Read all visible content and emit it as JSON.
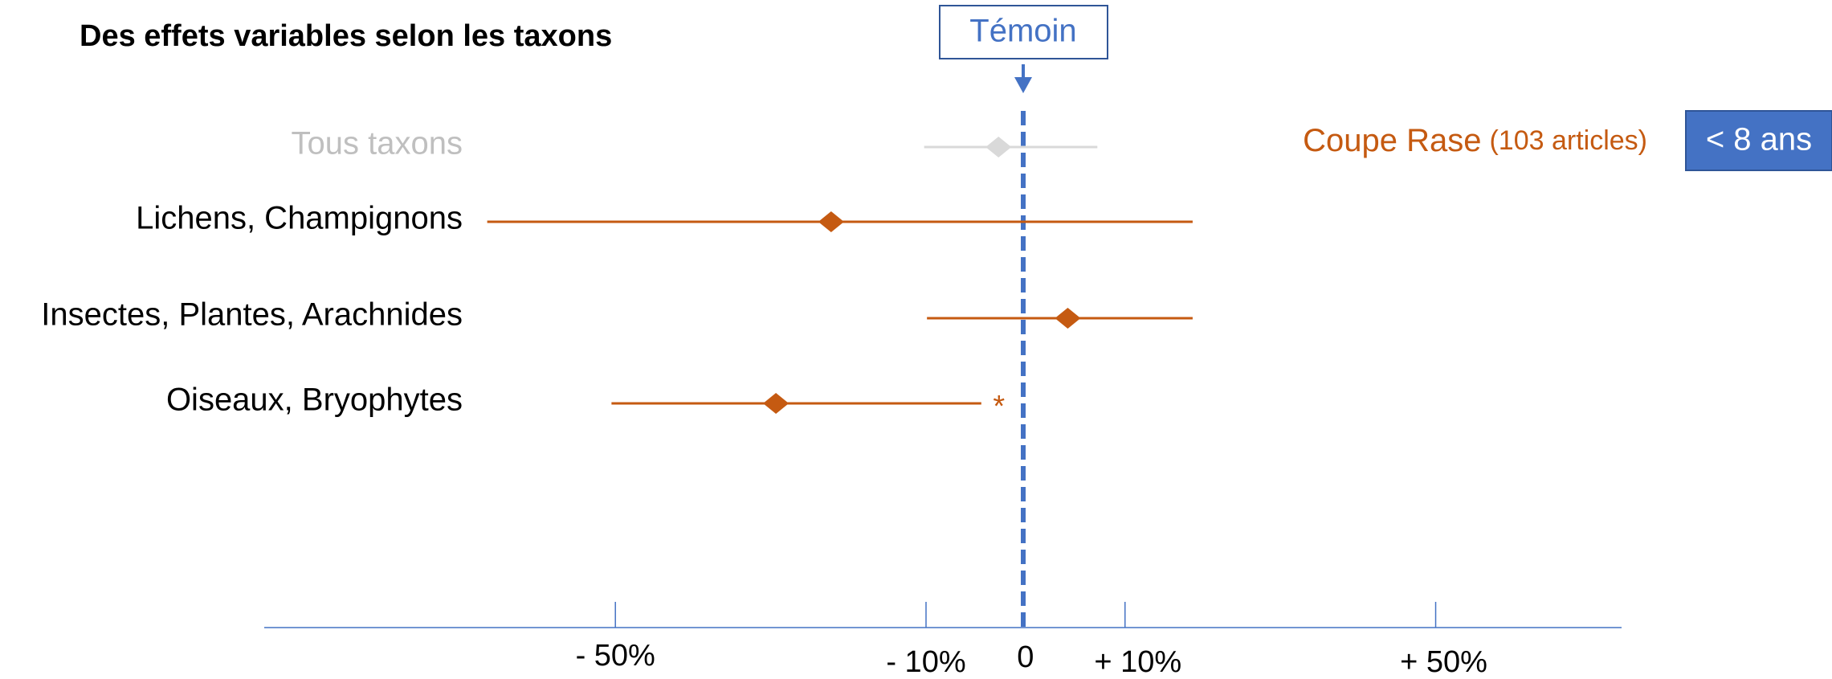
{
  "chart_data": {
    "type": "forest",
    "title": "Des effets variables selon les taxons",
    "reference": "Témoin",
    "group": "Coupe Rase",
    "group_note": "(103 articles)",
    "period": "< 8 ans",
    "xscale": "symlog",
    "xlim": [
      -117,
      82
    ],
    "xticks": [
      {
        "value": -50,
        "label": "- 50%"
      },
      {
        "value": -10,
        "label": "- 10%"
      },
      0,
      {
        "value": 10,
        "label": "+ 10%"
      },
      {
        "value": 50,
        "label": "+ 50%"
      }
    ],
    "rows": [
      {
        "label": "Tous taxons",
        "value": -2.6,
        "low": -10.2,
        "high": 7.1,
        "color": "#d9d9d9",
        "text_color": "#bfbfbf"
      },
      {
        "label": "Lichens, Champignons",
        "value": -20.7,
        "low": -71.3,
        "high": 17.5,
        "color": "#c55a11",
        "text_color": "#000000"
      },
      {
        "label": "Insectes, Plantes, Arachnides",
        "value": 4.1,
        "low": -9.9,
        "high": 17.5,
        "color": "#c55a11",
        "text_color": "#000000"
      },
      {
        "label": "Oiseaux, Bryophytes",
        "value": -27.5,
        "low": -50.6,
        "high": -4.3,
        "color": "#c55a11",
        "text_color": "#000000",
        "note": "*"
      }
    ]
  }
}
